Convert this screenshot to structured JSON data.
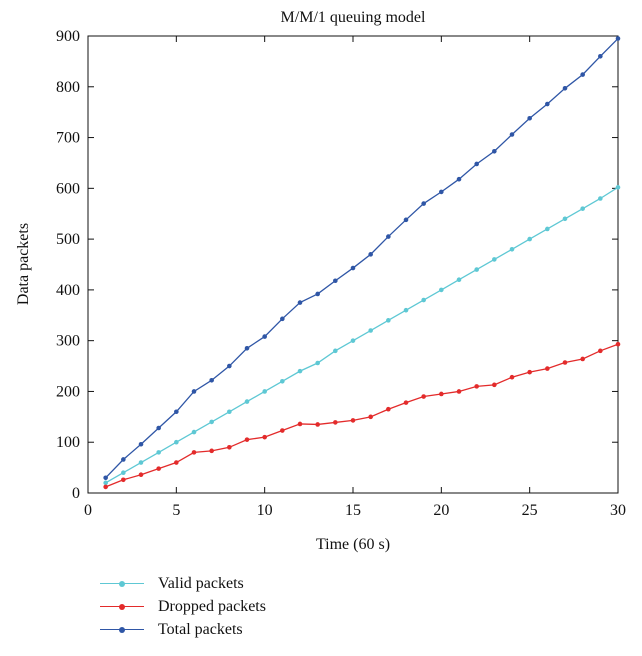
{
  "chart_data": {
    "type": "line",
    "title": "M/M/1 queuing model",
    "xlabel": "Time (60 s)",
    "ylabel": "Data packets",
    "xlim": [
      0,
      30
    ],
    "ylim": [
      0,
      900
    ],
    "xticks": [
      0,
      5,
      10,
      15,
      20,
      25,
      30
    ],
    "yticks": [
      0,
      100,
      200,
      300,
      400,
      500,
      600,
      700,
      800,
      900
    ],
    "grid": false,
    "legend_position": "below",
    "x": [
      1,
      2,
      3,
      4,
      5,
      6,
      7,
      8,
      9,
      10,
      11,
      12,
      13,
      14,
      15,
      16,
      17,
      18,
      19,
      20,
      21,
      22,
      23,
      24,
      25,
      26,
      27,
      28,
      29,
      30
    ],
    "series": [
      {
        "name": "Valid packets",
        "color": "#5ec8d4",
        "values": [
          20,
          40,
          60,
          80,
          100,
          120,
          140,
          160,
          180,
          200,
          220,
          240,
          256,
          280,
          300,
          320,
          340,
          360,
          380,
          400,
          420,
          440,
          460,
          480,
          500,
          520,
          540,
          560,
          580,
          602
        ]
      },
      {
        "name": "Dropped packets",
        "color": "#e32b2b",
        "values": [
          12,
          26,
          36,
          48,
          60,
          80,
          83,
          90,
          105,
          110,
          123,
          136,
          135,
          139,
          143,
          150,
          165,
          178,
          190,
          195,
          200,
          210,
          213,
          228,
          238,
          245,
          257,
          264,
          280,
          293
        ]
      },
      {
        "name": "Total packets",
        "color": "#2f56a6",
        "values": [
          30,
          66,
          96,
          128,
          160,
          200,
          222,
          250,
          285,
          308,
          343,
          375,
          392,
          418,
          443,
          470,
          505,
          538,
          570,
          593,
          618,
          648,
          673,
          706,
          738,
          766,
          797,
          824,
          860,
          895
        ]
      }
    ]
  }
}
